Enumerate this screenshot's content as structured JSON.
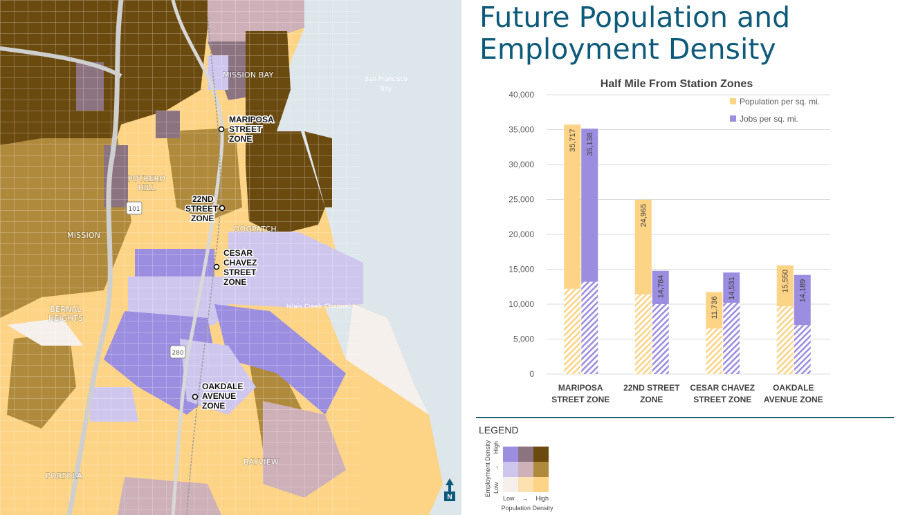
{
  "title": "Future Population and Employment Density",
  "colors": {
    "population": "#fdd385",
    "jobs": "#9b8ee0",
    "grid": "#d9d9d9",
    "title": "#0e5a7a",
    "water": "#dde6ea"
  },
  "map": {
    "neighborhoods": [
      "MISSION BAY",
      "POTRERO HILL",
      "MISSION",
      "DOGPATCH",
      "BERNAL HEIGHTS",
      "BAYVIEW",
      "PORTOLA"
    ],
    "water_labels": [
      "San Francisco Bay",
      "Islais Creek Channel"
    ],
    "highway_shields": [
      "101",
      "280"
    ],
    "stations": [
      {
        "label": "MARIPOSA STREET ZONE"
      },
      {
        "label": "22ND STREET ZONE"
      },
      {
        "label": "CESAR CHAVEZ STREET ZONE"
      },
      {
        "label": "OAKDALE AVENUE ZONE"
      }
    ],
    "north_arrow": "N"
  },
  "chart_data": {
    "type": "bar",
    "title": "Half Mile From Station Zones",
    "categories": [
      "MARIPOSA STREET ZONE",
      "22ND STREET ZONE",
      "CESAR CHAVEZ STREET ZONE",
      "OAKDALE AVENUE ZONE"
    ],
    "series": [
      {
        "name": "Population per sq. mi.",
        "values": [
          35717,
          24965,
          11736,
          15550
        ],
        "existing": [
          12200,
          11400,
          6500,
          9700
        ]
      },
      {
        "name": "Jobs per sq. mi.",
        "values": [
          35138,
          14784,
          14531,
          14189
        ],
        "existing": [
          13200,
          10000,
          10200,
          7000
        ]
      }
    ],
    "data_labels": [
      [
        "35,717",
        "24,965",
        "11,736",
        "15,550"
      ],
      [
        "35,138",
        "14,784",
        "14,531",
        "14,189"
      ]
    ],
    "yticks": [
      "0",
      "5,000",
      "10,000",
      "15,000",
      "20,000",
      "25,000",
      "30,000",
      "35,000",
      "40,000"
    ],
    "ylim": [
      0,
      40000
    ],
    "grid": true,
    "legend_position": "top-right"
  },
  "legend": {
    "title": "LEGEND",
    "ylabel": "Employment Density",
    "xlabel": "Population Density",
    "low": "Low",
    "high": "High",
    "arrow": "→",
    "matrix": [
      [
        "#9b8ee0",
        "#8c7380",
        "#6b4a10"
      ],
      [
        "#cfc6ee",
        "#cdb0b8",
        "#b08a3c"
      ],
      [
        "#f5f0eb",
        "#fde2b0",
        "#fdd385"
      ]
    ]
  }
}
